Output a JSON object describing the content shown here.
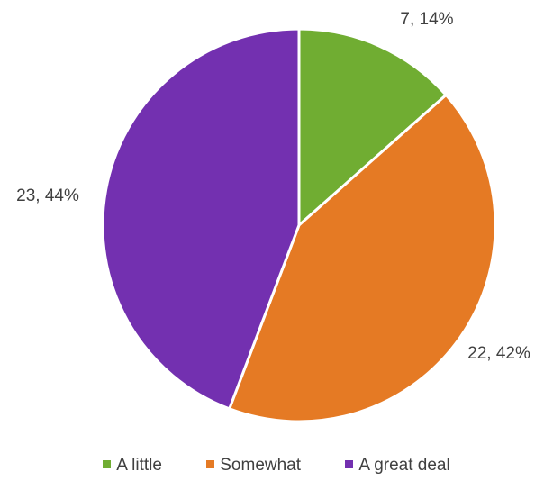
{
  "chart_data": {
    "type": "pie",
    "categories": [
      "A little",
      "Somewhat",
      "A great deal"
    ],
    "values": [
      7,
      22,
      23
    ],
    "percentages": [
      "14%",
      "42%",
      "44%"
    ],
    "data_labels": [
      "7, 14%",
      "22, 42%",
      "23, 44%"
    ],
    "colors": [
      "#70AD32",
      "#E57A24",
      "#7330B0"
    ],
    "legend_position": "bottom",
    "start_angle": "top",
    "direction": "clockwise"
  }
}
